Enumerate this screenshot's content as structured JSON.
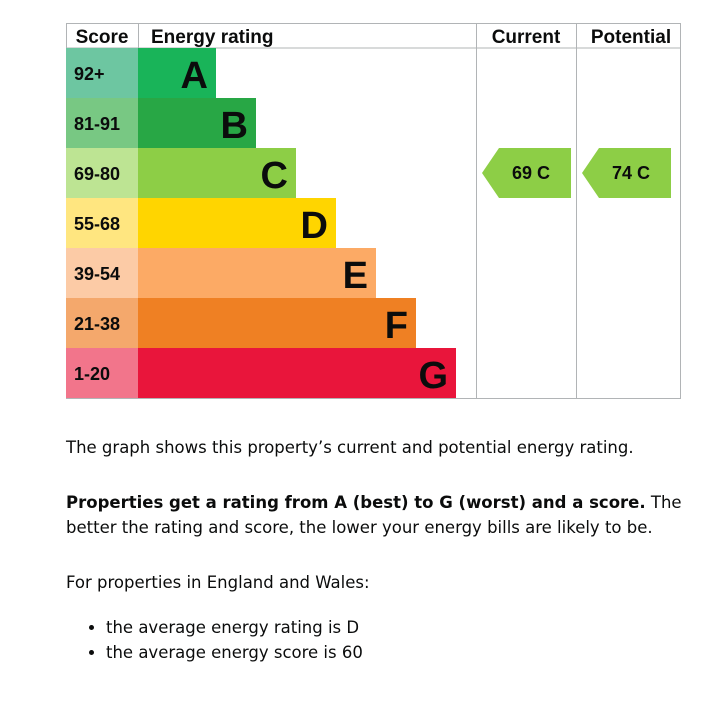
{
  "chart_data": {
    "type": "bar",
    "headers": {
      "score": "Score",
      "rating": "Energy rating",
      "current": "Current",
      "potential": "Potential"
    },
    "bands": [
      {
        "letter": "A",
        "range": "92+",
        "color": "#19b459",
        "score_bg": "#6dc6a1"
      },
      {
        "letter": "B",
        "range": "81-91",
        "color": "#28a745",
        "score_bg": "#78c883"
      },
      {
        "letter": "C",
        "range": "69-80",
        "color": "#8dce46",
        "score_bg": "#bde493"
      },
      {
        "letter": "D",
        "range": "55-68",
        "color": "#ffd500",
        "score_bg": "#ffe680"
      },
      {
        "letter": "E",
        "range": "39-54",
        "color": "#fcaa65",
        "score_bg": "#fccba6"
      },
      {
        "letter": "F",
        "range": "21-38",
        "color": "#ef8023",
        "score_bg": "#f4a86c"
      },
      {
        "letter": "G",
        "range": "1-20",
        "color": "#e9153b",
        "score_bg": "#f2758b"
      }
    ],
    "current": {
      "score": 69,
      "band": "C",
      "label": "69  C",
      "color": "#8dce46"
    },
    "potential": {
      "score": 74,
      "band": "C",
      "label": "74  C",
      "color": "#8dce46"
    }
  },
  "text": {
    "intro": "The graph shows this property’s current and potential energy rating.",
    "bold_lead": "Properties get a rating from A (best) to G (worst) and a score.",
    "rest": " The better the rating and score, the lower your energy bills are likely to be.",
    "region": "For properties in England and Wales:",
    "bullets": [
      "the average energy rating is D",
      "the average energy score is 60"
    ]
  }
}
